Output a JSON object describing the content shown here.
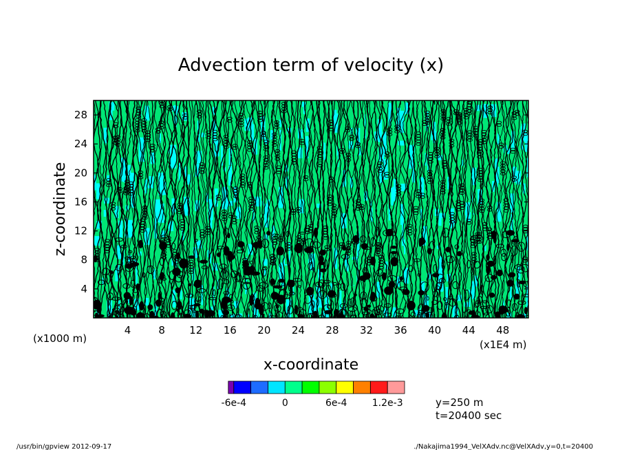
{
  "chart_data": {
    "type": "heatmap",
    "title": "Advection term of velocity (x)",
    "xlabel": "x-coordinate",
    "ylabel": "z-coordinate",
    "x_unit_note": "(x1E4 m)",
    "y_unit_note": "(x1000 m)",
    "xlim": [
      0,
      51
    ],
    "ylim": [
      0,
      30
    ],
    "x_ticks": [
      "4",
      "8",
      "12",
      "16",
      "20",
      "24",
      "28",
      "32",
      "36",
      "40",
      "44",
      "48"
    ],
    "y_ticks": [
      "4",
      "8",
      "12",
      "16",
      "20",
      "24",
      "28"
    ],
    "colorbar": {
      "levels": [
        -0.0008,
        -0.0006,
        -0.0004,
        -0.0002,
        0,
        0.0002,
        0.0004,
        0.0006,
        0.0008,
        0.001,
        0.0012,
        0.0014
      ],
      "colors": [
        "#7a00b0",
        "#0000ff",
        "#1e6cff",
        "#00e5ff",
        "#00ff8c",
        "#00ff00",
        "#8cff00",
        "#ffff00",
        "#ff8000",
        "#ff1a1a",
        "#ff9a9a"
      ],
      "tick_labels": [
        "-6e-4",
        "0",
        "6e-4",
        "1.2e-3"
      ]
    },
    "annotations": [
      "y=250 m",
      "t=20400 sec"
    ],
    "dominant_colors": [
      "#00ffff",
      "#00e676",
      "#000000"
    ]
  },
  "footer": {
    "left": "/usr/bin/gpview   2012-09-17",
    "right": "./Nakajima1994_VelXAdv.nc@VelXAdv,y=0,t=20400"
  }
}
